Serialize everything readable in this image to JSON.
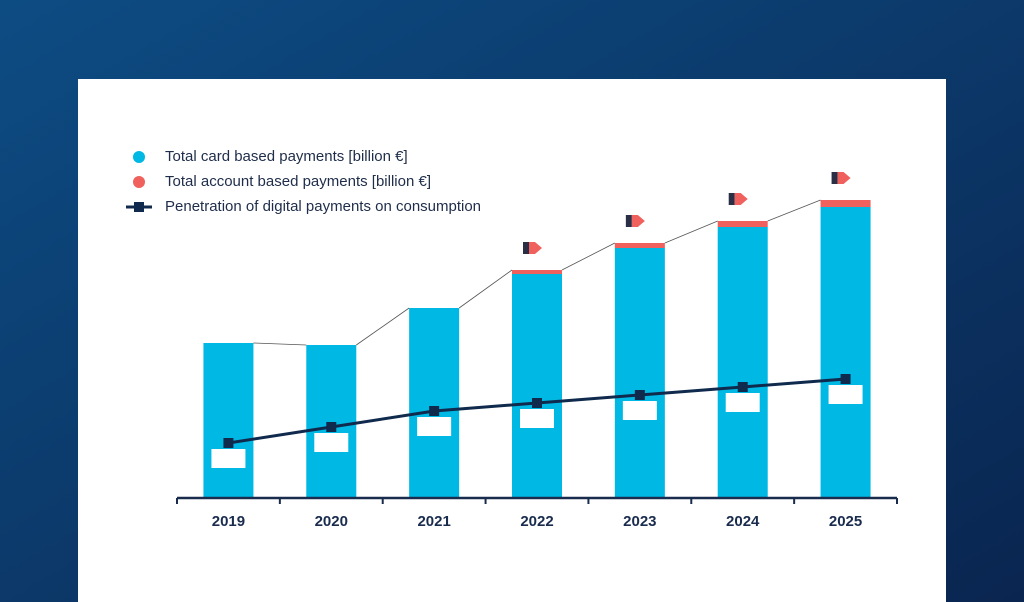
{
  "chart_data": {
    "type": "bar",
    "categories": [
      "2019",
      "2020",
      "2021",
      "2022",
      "2023",
      "2024",
      "2025"
    ],
    "series": [
      {
        "name": "Total card based payments [billion €]",
        "color": "#00b8e4",
        "values": [
          155,
          153,
          190,
          224,
          250,
          271,
          291
        ]
      },
      {
        "name": "Total account based payments [billion €]",
        "color": "#f0605d",
        "values": [
          0,
          0,
          0,
          4,
          5,
          6,
          7
        ]
      },
      {
        "name": "Penetration of digital payments on consumption",
        "color": "#0f2a4d",
        "type": "line",
        "axis": "y2",
        "values": [
          55,
          71,
          87,
          95,
          103,
          111,
          119
        ]
      }
    ],
    "stacked": true,
    "ylim": [
      0,
      320
    ],
    "y2lim": [
      0,
      320
    ]
  }
}
